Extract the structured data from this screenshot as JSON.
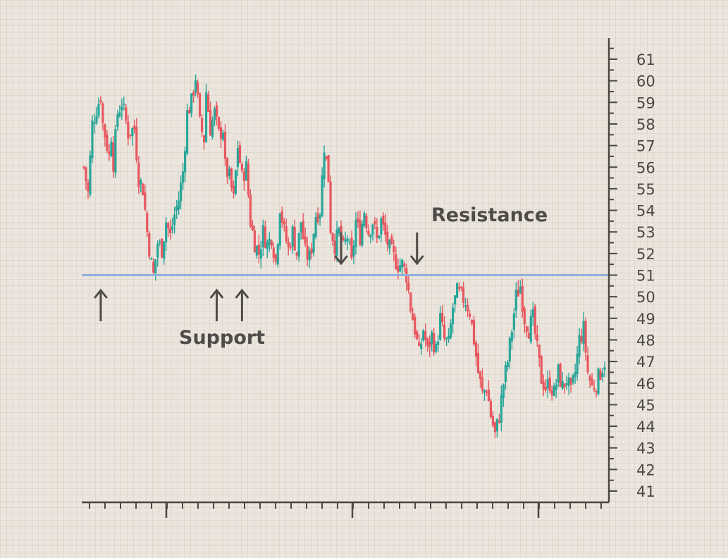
{
  "chart_data": {
    "type": "candlestick",
    "title": "",
    "xlabel": "",
    "ylabel": "",
    "ylim": [
      40.3,
      61.8
    ],
    "y_ticks": [
      41,
      42,
      43,
      44,
      45,
      46,
      47,
      48,
      49,
      50,
      51,
      52,
      53,
      54,
      55,
      56,
      57,
      58,
      59,
      60,
      61
    ],
    "y_axis_side": "right",
    "grid": true,
    "colors": {
      "up": "#2aa69a",
      "down": "#e8575f",
      "level_line": "#8fb0dd",
      "axis": "#4a4744",
      "background": "#ebe5dd"
    },
    "level_line": {
      "value": 51
    },
    "annotations": {
      "support_label": "Support",
      "resistance_label": "Resistance",
      "support_arrow_points": [
        8,
        63,
        75
      ],
      "resistance_arrow_points": [
        122,
        158
      ]
    },
    "anchors": [
      [
        0,
        56.0
      ],
      [
        2,
        54.8
      ],
      [
        4,
        58.0
      ],
      [
        6,
        58.7
      ],
      [
        8,
        59.3
      ],
      [
        9,
        58.0
      ],
      [
        10,
        57.5
      ],
      [
        12,
        56.5
      ],
      [
        13,
        57.5
      ],
      [
        14,
        56.2
      ],
      [
        16,
        58.5
      ],
      [
        18,
        59.0
      ],
      [
        20,
        58.1
      ],
      [
        21,
        57.6
      ],
      [
        24,
        57.8
      ],
      [
        26,
        55.5
      ],
      [
        28,
        55.0
      ],
      [
        30,
        53.0
      ],
      [
        32,
        51.5
      ],
      [
        33,
        51.0
      ],
      [
        35,
        52.5
      ],
      [
        37,
        52.2
      ],
      [
        39,
        53.5
      ],
      [
        41,
        52.8
      ],
      [
        43,
        53.8
      ],
      [
        45,
        54.5
      ],
      [
        47,
        55.8
      ],
      [
        49,
        58.5
      ],
      [
        51,
        59.0
      ],
      [
        53,
        60.2
      ],
      [
        55,
        58.0
      ],
      [
        57,
        57.3
      ],
      [
        58,
        59.5
      ],
      [
        60,
        57.8
      ],
      [
        62,
        58.5
      ],
      [
        64,
        57.5
      ],
      [
        66,
        57.8
      ],
      [
        67,
        56.0
      ],
      [
        69,
        55.5
      ],
      [
        71,
        54.5
      ],
      [
        73,
        57.0
      ],
      [
        75,
        55.5
      ],
      [
        77,
        56.0
      ],
      [
        79,
        53.5
      ],
      [
        81,
        52.5
      ],
      [
        83,
        52.0
      ],
      [
        85,
        53.0
      ],
      [
        87,
        52.4
      ],
      [
        89,
        52.8
      ],
      [
        91,
        51.6
      ],
      [
        92,
        52.8
      ],
      [
        93,
        54.2
      ],
      [
        95,
        53.0
      ],
      [
        97,
        52.2
      ],
      [
        99,
        53.0
      ],
      [
        101,
        52.0
      ],
      [
        103,
        53.5
      ],
      [
        105,
        52.0
      ],
      [
        107,
        51.8
      ],
      [
        108,
        52.3
      ],
      [
        110,
        53.8
      ],
      [
        112,
        54.0
      ],
      [
        114,
        57.0
      ],
      [
        116,
        55.5
      ],
      [
        117,
        53.2
      ],
      [
        119,
        52.4
      ],
      [
        121,
        53.0
      ],
      [
        123,
        52.2
      ],
      [
        125,
        52.8
      ],
      [
        127,
        51.5
      ],
      [
        129,
        53.5
      ],
      [
        131,
        52.8
      ],
      [
        133,
        54.0
      ],
      [
        135,
        53.0
      ],
      [
        137,
        53.5
      ],
      [
        139,
        52.6
      ],
      [
        141,
        53.5
      ],
      [
        143,
        52.8
      ],
      [
        145,
        52.2
      ],
      [
        147,
        51.8
      ],
      [
        149,
        51.5
      ],
      [
        151,
        51.5
      ],
      [
        153,
        51.0
      ],
      [
        155,
        49.5
      ],
      [
        157,
        48.5
      ],
      [
        159,
        47.3
      ],
      [
        161,
        48.5
      ],
      [
        163,
        47.5
      ],
      [
        165,
        48.2
      ],
      [
        167,
        47.5
      ],
      [
        169,
        49.0
      ],
      [
        171,
        48.0
      ],
      [
        173,
        47.8
      ],
      [
        175,
        49.5
      ],
      [
        177,
        50.2
      ],
      [
        179,
        50.0
      ],
      [
        181,
        49.8
      ],
      [
        183,
        49.3
      ],
      [
        185,
        48.0
      ],
      [
        187,
        46.5
      ],
      [
        189,
        45.5
      ],
      [
        191,
        45.8
      ],
      [
        193,
        44.5
      ],
      [
        195,
        43.6
      ],
      [
        197,
        44.5
      ],
      [
        199,
        46.0
      ],
      [
        201,
        47.0
      ],
      [
        203,
        48.5
      ],
      [
        205,
        50.0
      ],
      [
        207,
        50.5
      ],
      [
        209,
        49.0
      ],
      [
        211,
        48.5
      ],
      [
        213,
        49.0
      ],
      [
        215,
        47.5
      ],
      [
        217,
        46.2
      ],
      [
        219,
        45.8
      ],
      [
        221,
        46.0
      ],
      [
        223,
        45.5
      ],
      [
        225,
        46.5
      ],
      [
        227,
        45.8
      ],
      [
        229,
        46.2
      ],
      [
        231,
        45.5
      ],
      [
        233,
        46.5
      ],
      [
        235,
        48.0
      ],
      [
        237,
        48.5
      ],
      [
        239,
        46.5
      ],
      [
        241,
        45.8
      ],
      [
        243,
        46.0
      ],
      [
        245,
        46.5
      ],
      [
        247,
        47.0
      ]
    ]
  }
}
